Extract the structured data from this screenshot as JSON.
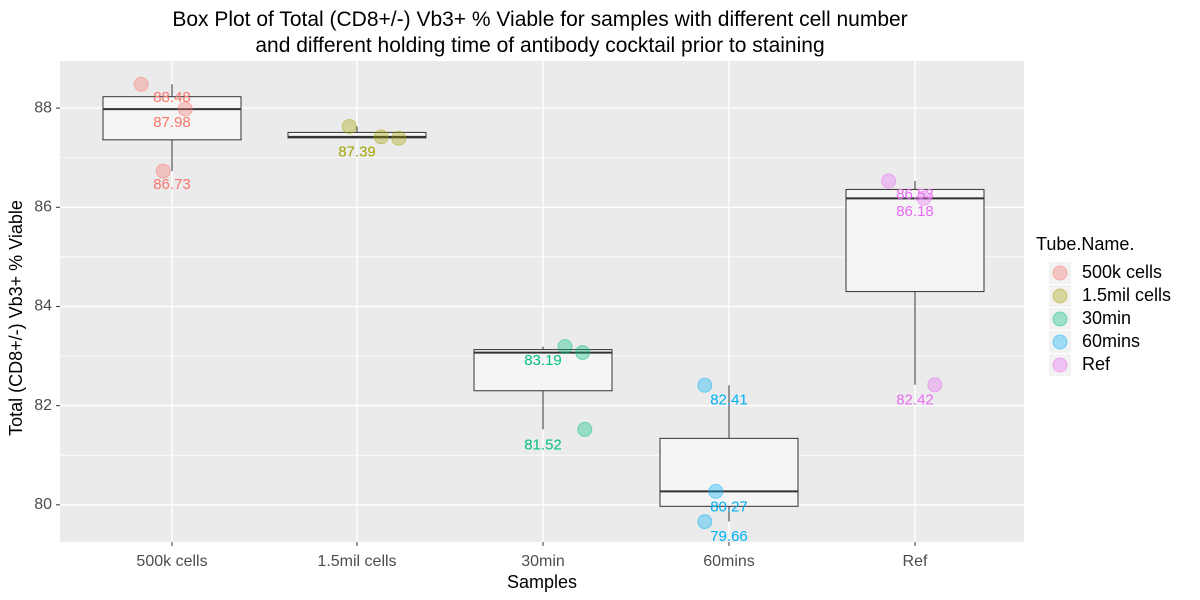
{
  "chart_data": {
    "type": "box",
    "title": "Box Plot of Total (CD8+/-) Vb3+ % Viable for samples with different cell number and different holding time of antibody cocktail prior to staining",
    "title_lines": [
      "Box Plot of Total (CD8+/-) Vb3+ % Viable for samples with different cell number",
      "and different holding time of antibody cocktail prior to staining"
    ],
    "xlabel": "Samples",
    "ylabel": "Total (CD8+/-) Vb3+ % Viable",
    "categories": [
      "500k cells",
      "1.5mil cells",
      "30min",
      "60mins",
      "Ref"
    ],
    "ylim": [
      79.25,
      88.95
    ],
    "yticks": [
      80,
      82,
      84,
      86,
      88
    ],
    "ytick_labels": [
      "80",
      "82",
      "84",
      "86",
      "88"
    ],
    "grid": true,
    "legend": {
      "title": "Tube.Name.",
      "position": "right",
      "entries": [
        "500k cells",
        "1.5mil cells",
        "30min",
        "60mins",
        "Ref"
      ]
    },
    "colors": [
      "#F8766D",
      "#A3A500",
      "#00BF7D",
      "#00B0F6",
      "#E76BF3"
    ],
    "boxes": [
      {
        "category": "500k cells",
        "whisker_low": 86.73,
        "q1": 87.36,
        "median": 87.98,
        "q3": 88.23,
        "whisker_high": 88.48
      },
      {
        "category": "1.5mil cells",
        "whisker_low": 87.39,
        "q1": 87.4,
        "median": 87.42,
        "q3": 87.51,
        "whisker_high": 87.63
      },
      {
        "category": "30min",
        "whisker_low": 81.52,
        "q1": 82.3,
        "median": 83.07,
        "q3": 83.13,
        "whisker_high": 83.19
      },
      {
        "category": "60mins",
        "whisker_low": 79.66,
        "q1": 79.97,
        "median": 80.27,
        "q3": 81.34,
        "whisker_high": 82.41
      },
      {
        "category": "Ref",
        "whisker_low": 82.42,
        "q1": 84.3,
        "median": 86.18,
        "q3": 86.36,
        "whisker_high": 86.53
      }
    ],
    "points": [
      {
        "category": "500k cells",
        "jitter": -0.28,
        "y": 88.48
      },
      {
        "category": "500k cells",
        "jitter": 0.12,
        "y": 87.98
      },
      {
        "category": "500k cells",
        "jitter": -0.08,
        "y": 86.73
      },
      {
        "category": "1.5mil cells",
        "jitter": -0.07,
        "y": 87.63
      },
      {
        "category": "1.5mil cells",
        "jitter": 0.22,
        "y": 87.42
      },
      {
        "category": "1.5mil cells",
        "jitter": 0.38,
        "y": 87.39
      },
      {
        "category": "30min",
        "jitter": 0.2,
        "y": 83.19
      },
      {
        "category": "30min",
        "jitter": 0.36,
        "y": 83.07
      },
      {
        "category": "30min",
        "jitter": 0.38,
        "y": 81.52
      },
      {
        "category": "60mins",
        "jitter": -0.22,
        "y": 82.41
      },
      {
        "category": "60mins",
        "jitter": -0.12,
        "y": 80.27
      },
      {
        "category": "60mins",
        "jitter": -0.22,
        "y": 79.66
      },
      {
        "category": "Ref",
        "jitter": -0.24,
        "y": 86.53
      },
      {
        "category": "Ref",
        "jitter": 0.08,
        "y": 86.18
      },
      {
        "category": "Ref",
        "jitter": 0.18,
        "y": 82.42
      }
    ],
    "data_labels": [
      {
        "category": "500k cells",
        "text": "88.48",
        "y": 88.2
      },
      {
        "category": "500k cells",
        "text": "87.98",
        "y": 87.7
      },
      {
        "category": "500k cells",
        "text": "86.73",
        "y": 86.45
      },
      {
        "category": "1.5mil cells",
        "text": "87.39",
        "y": 87.1
      },
      {
        "category": "30min",
        "text": "83.19",
        "y": 82.9
      },
      {
        "category": "30min",
        "text": "81.52",
        "y": 81.2
      },
      {
        "category": "60mins",
        "text": "82.41",
        "y": 82.1
      },
      {
        "category": "60mins",
        "text": "80.27",
        "y": 79.95
      },
      {
        "category": "60mins",
        "text": "79.66",
        "y": 79.35
      },
      {
        "category": "Ref",
        "text": "86.53",
        "y": 86.25
      },
      {
        "category": "Ref",
        "text": "86.18",
        "y": 85.9
      },
      {
        "category": "Ref",
        "text": "82.42",
        "y": 82.1
      }
    ]
  }
}
